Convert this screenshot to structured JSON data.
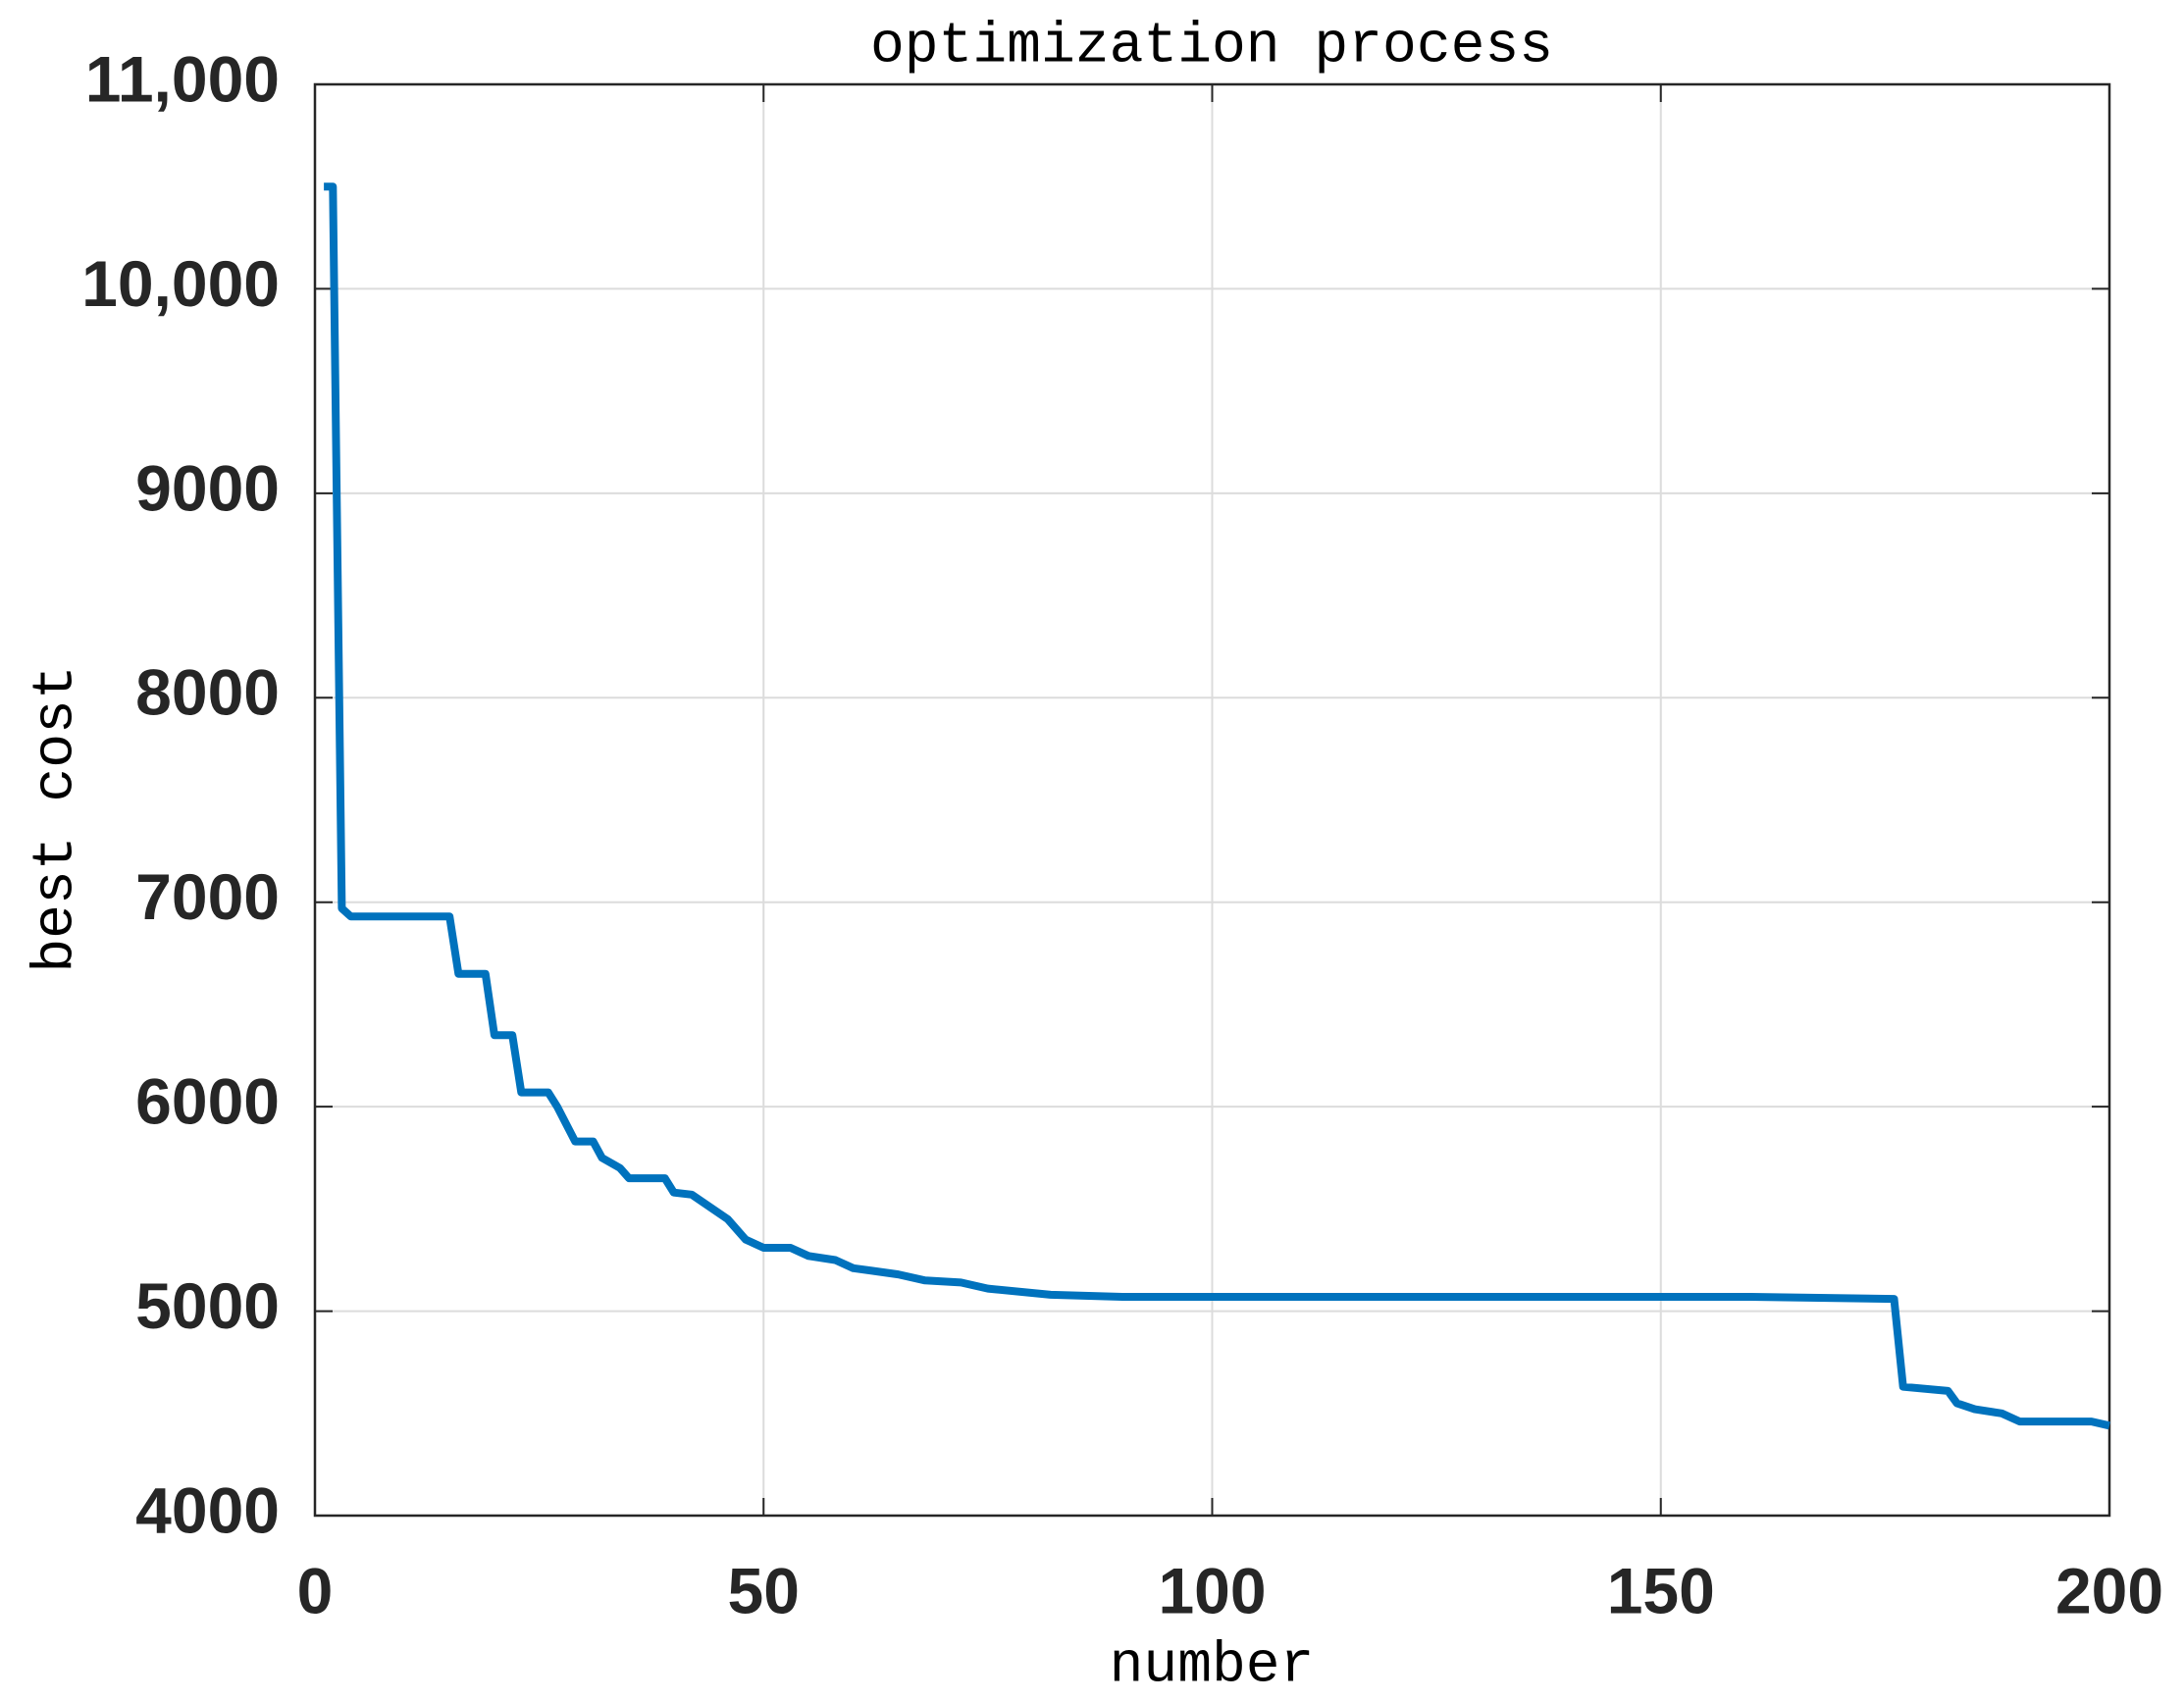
{
  "chart_data": {
    "type": "line",
    "title": "optimization process",
    "x_label": "number",
    "y_label": "best cost",
    "x": [
      1,
      2,
      3,
      4,
      15,
      16,
      19,
      20,
      22,
      23,
      26,
      27,
      29,
      31,
      32,
      34,
      35,
      39,
      40,
      42,
      46,
      48,
      50,
      53,
      55,
      58,
      60,
      65,
      68,
      72,
      75,
      82,
      90,
      160,
      176,
      177,
      182,
      183,
      185,
      188,
      190,
      198,
      200
    ],
    "series": [
      {
        "name": "best cost",
        "color": "#0072bd",
        "values": [
          10500,
          10500,
          6970,
          6930,
          6930,
          6650,
          6650,
          6350,
          6350,
          6070,
          6070,
          6000,
          5830,
          5830,
          5750,
          5700,
          5650,
          5650,
          5580,
          5570,
          5450,
          5350,
          5310,
          5310,
          5270,
          5250,
          5210,
          5180,
          5150,
          5140,
          5110,
          5080,
          5070,
          5070,
          5060,
          4630,
          4610,
          4550,
          4520,
          4500,
          4460,
          4460,
          4440
        ]
      }
    ],
    "xlim": [
      0,
      200
    ],
    "xticks": [
      0,
      50,
      100,
      150,
      200
    ],
    "ylim": [
      4000,
      11000
    ],
    "yticks": [
      4000,
      5000,
      6000,
      7000,
      8000,
      9000,
      {
        "value": 10000,
        "label": "10,000"
      },
      {
        "value": 11000,
        "label": "11,000"
      }
    ],
    "grid": true
  }
}
